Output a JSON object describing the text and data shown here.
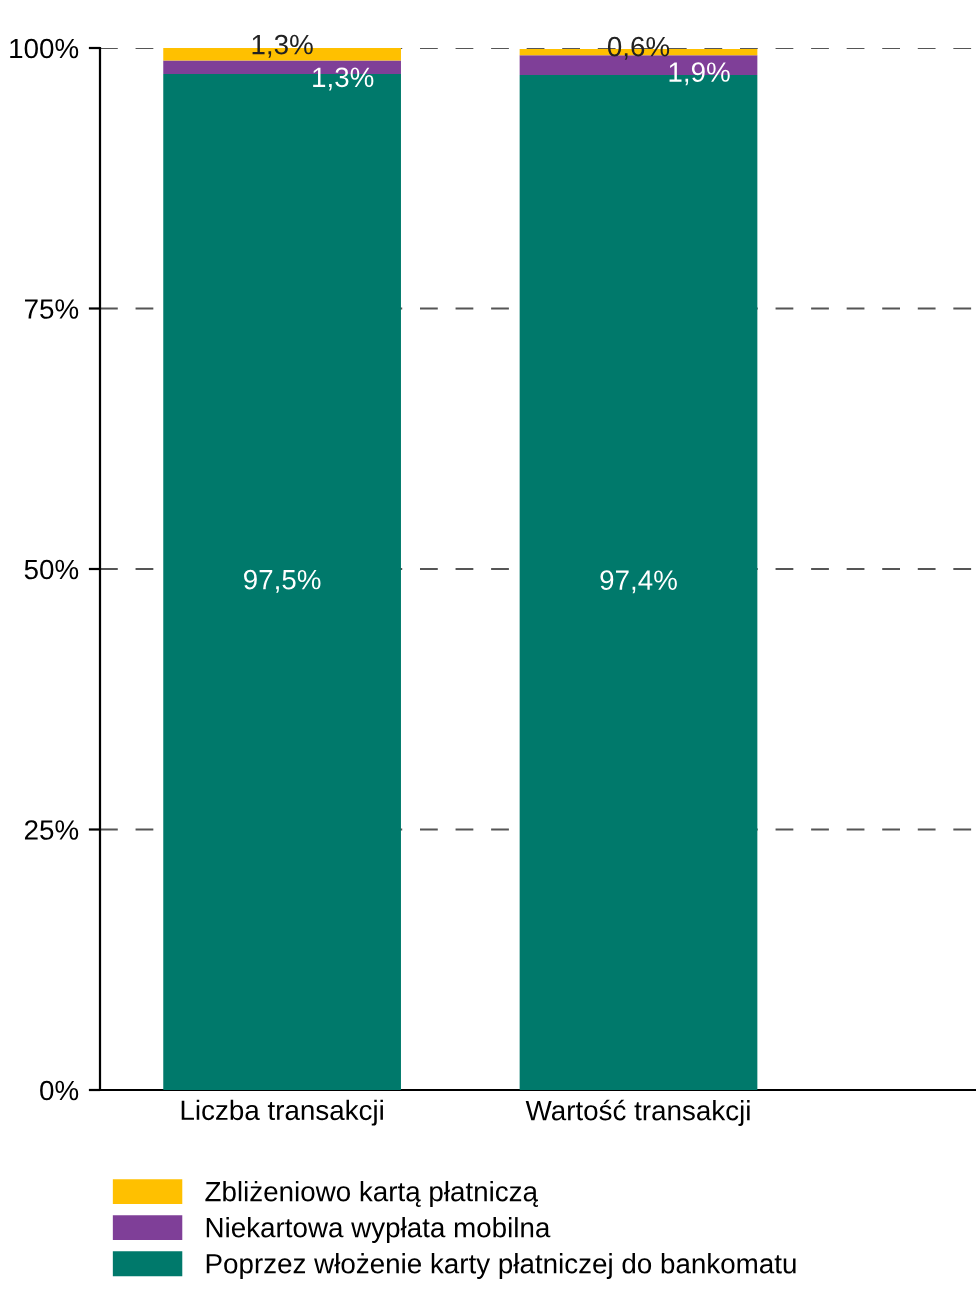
{
  "chart_data": {
    "type": "bar",
    "stacked": true,
    "categories": [
      "Liczba transakcji",
      "Wartość transakcji"
    ],
    "series": [
      {
        "name": "Poprzez włożenie karty płatniczej do bankomatu",
        "color": "#00796b",
        "values": [
          97.5,
          97.4
        ],
        "value_labels": [
          "97,5%",
          "97,4%"
        ]
      },
      {
        "name": "Niekartowa wypłata mobilna",
        "color": "#7f3f98",
        "values": [
          1.3,
          1.9
        ],
        "value_labels": [
          "1,3%",
          "1,9%"
        ]
      },
      {
        "name": "Zbliżeniowo kartą płatniczą",
        "color": "#ffc000",
        "values": [
          1.3,
          0.6
        ],
        "value_labels": [
          "1,3%",
          "0,6%"
        ]
      }
    ],
    "ylim": [
      0,
      100
    ],
    "yticks": [
      {
        "value": 0,
        "label": "0%"
      },
      {
        "value": 25,
        "label": "25%"
      },
      {
        "value": 50,
        "label": "50%"
      },
      {
        "value": 75,
        "label": "75%"
      },
      {
        "value": 100,
        "label": "100%"
      }
    ],
    "grid": "y",
    "legend": "bottom"
  }
}
